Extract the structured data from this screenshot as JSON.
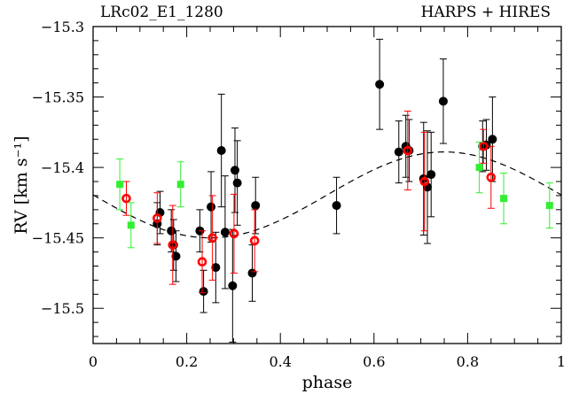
{
  "chart_data": {
    "type": "scatter",
    "title_left": "LRc02_E1_1280",
    "title_right": "HARPS + HIRES",
    "xlabel": "phase",
    "ylabel": "RV [km s⁻¹]",
    "xlim": [
      0,
      1
    ],
    "ylim": [
      -15.525,
      -15.3
    ],
    "x_ticks": [
      0,
      0.2,
      0.4,
      0.6,
      0.8,
      1
    ],
    "x_tick_labels": [
      "0",
      "0.2",
      "0.4",
      "0.6",
      "0.8",
      "1"
    ],
    "y_ticks": [
      -15.5,
      -15.45,
      -15.4,
      -15.35,
      -15.3
    ],
    "y_tick_labels": [
      "−15.5",
      "−15.45",
      "−15.4",
      "−15.35",
      "−15.3"
    ],
    "model": {
      "gamma": -15.4195,
      "amplitude": 0.0305,
      "phase_max": 0.75,
      "style": "dashed"
    },
    "series": [
      {
        "marker": "filled-circle",
        "color": "#000000",
        "points": [
          {
            "x": 0.137,
            "y": -15.44,
            "err": 0.015
          },
          {
            "x": 0.143,
            "y": -15.432,
            "err": 0.015
          },
          {
            "x": 0.167,
            "y": -15.445,
            "err": 0.015
          },
          {
            "x": 0.172,
            "y": -15.455,
            "err": 0.018
          },
          {
            "x": 0.177,
            "y": -15.463,
            "err": 0.018
          },
          {
            "x": 0.228,
            "y": -15.445,
            "err": 0.015
          },
          {
            "x": 0.236,
            "y": -15.488,
            "err": 0.015
          },
          {
            "x": 0.252,
            "y": -15.428,
            "err": 0.025
          },
          {
            "x": 0.262,
            "y": -15.471,
            "err": 0.025
          },
          {
            "x": 0.274,
            "y": -15.388,
            "err": 0.04
          },
          {
            "x": 0.282,
            "y": -15.446,
            "err": 0.04
          },
          {
            "x": 0.298,
            "y": -15.484,
            "err": 0.04
          },
          {
            "x": 0.303,
            "y": -15.402,
            "err": 0.03
          },
          {
            "x": 0.308,
            "y": -15.411,
            "err": 0.03
          },
          {
            "x": 0.34,
            "y": -15.475,
            "err": 0.02
          },
          {
            "x": 0.347,
            "y": -15.427,
            "err": 0.02
          },
          {
            "x": 0.52,
            "y": -15.427,
            "err": 0.02
          },
          {
            "x": 0.612,
            "y": -15.341,
            "err": 0.032
          },
          {
            "x": 0.653,
            "y": -15.389,
            "err": 0.022
          },
          {
            "x": 0.668,
            "y": -15.385,
            "err": 0.022
          },
          {
            "x": 0.675,
            "y": -15.388,
            "err": 0.022
          },
          {
            "x": 0.706,
            "y": -15.408,
            "err": 0.04
          },
          {
            "x": 0.714,
            "y": -15.414,
            "err": 0.04
          },
          {
            "x": 0.722,
            "y": -15.405,
            "err": 0.03
          },
          {
            "x": 0.748,
            "y": -15.353,
            "err": 0.03
          },
          {
            "x": 0.832,
            "y": -15.385,
            "err": 0.018
          },
          {
            "x": 0.84,
            "y": -15.384,
            "err": 0.018
          },
          {
            "x": 0.853,
            "y": -15.38,
            "err": 0.03
          }
        ]
      },
      {
        "marker": "open-circle",
        "color": "#ff0000",
        "points": [
          {
            "x": 0.071,
            "y": -15.422,
            "err": 0.012
          },
          {
            "x": 0.137,
            "y": -15.436,
            "err": 0.018
          },
          {
            "x": 0.17,
            "y": -15.455,
            "err": 0.028
          },
          {
            "x": 0.233,
            "y": -15.467,
            "err": 0.022
          },
          {
            "x": 0.255,
            "y": -15.45,
            "err": 0.03
          },
          {
            "x": 0.301,
            "y": -15.447,
            "err": 0.028
          },
          {
            "x": 0.345,
            "y": -15.452,
            "err": 0.022
          },
          {
            "x": 0.672,
            "y": -15.388,
            "err": 0.028
          },
          {
            "x": 0.708,
            "y": -15.41,
            "err": 0.035
          },
          {
            "x": 0.834,
            "y": -15.385,
            "err": 0.012
          },
          {
            "x": 0.85,
            "y": -15.407,
            "err": 0.022
          }
        ]
      },
      {
        "marker": "filled-square",
        "color": "#33ee33",
        "points": [
          {
            "x": 0.057,
            "y": -15.412,
            "err": 0.018
          },
          {
            "x": 0.081,
            "y": -15.441,
            "err": 0.016
          },
          {
            "x": 0.187,
            "y": -15.412,
            "err": 0.016
          },
          {
            "x": 0.825,
            "y": -15.4,
            "err": 0.018
          },
          {
            "x": 0.877,
            "y": -15.422,
            "err": 0.018
          },
          {
            "x": 0.975,
            "y": -15.427,
            "err": 0.016
          }
        ]
      }
    ]
  }
}
